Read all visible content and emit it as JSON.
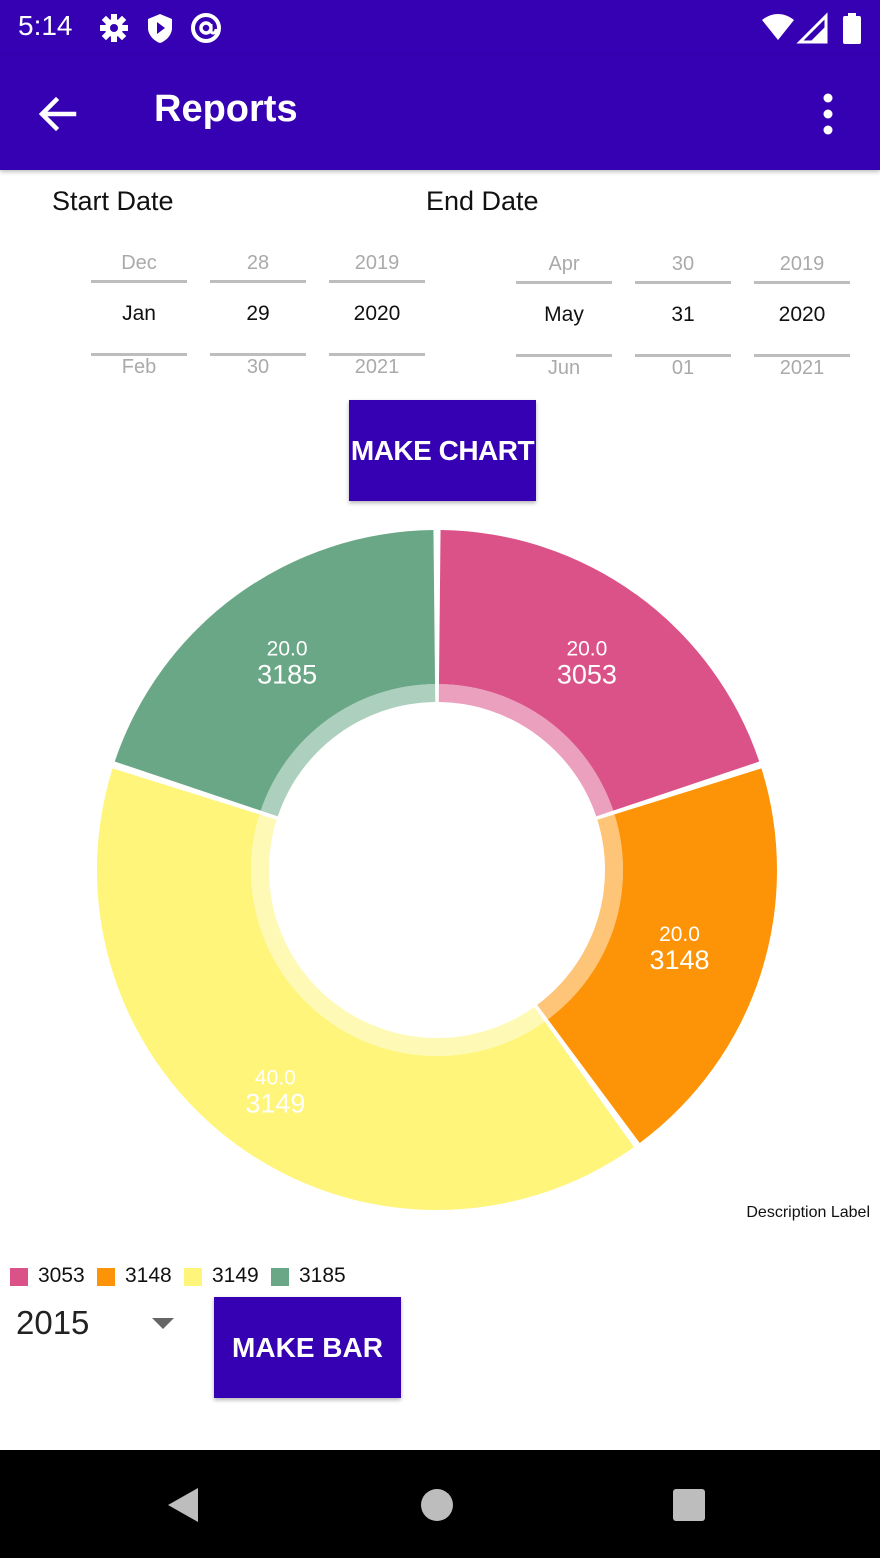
{
  "status_bar": {
    "time": "5:14",
    "icons_left": [
      "settings-icon",
      "shield-play-icon",
      "at-sign-icon"
    ],
    "icons_right": [
      "wifi-icon",
      "signal-icon",
      "battery-icon"
    ]
  },
  "app_bar": {
    "title": "Reports",
    "back_icon": "arrow-back-icon",
    "menu_icon": "more-vert-icon"
  },
  "start_date": {
    "label": "Start Date",
    "month": {
      "prev": "Dec",
      "current": "Jan",
      "next": "Feb"
    },
    "day": {
      "prev": "28",
      "current": "29",
      "next": "30"
    },
    "year": {
      "prev": "2019",
      "current": "2020",
      "next": "2021"
    }
  },
  "end_date": {
    "label": "End Date",
    "month": {
      "prev": "Apr",
      "current": "May",
      "next": "Jun"
    },
    "day": {
      "prev": "30",
      "current": "31",
      "next": "01"
    },
    "year": {
      "prev": "2019",
      "current": "2020",
      "next": "2021"
    }
  },
  "buttons": {
    "make_chart": "MAKE CHART",
    "make_bar": "MAKE BAR"
  },
  "chart_data": {
    "type": "pie",
    "style": "donut",
    "description": "Description Label",
    "slices": [
      {
        "label": "3053",
        "value": 20.0,
        "value_text": "20.0",
        "color": "#db5289"
      },
      {
        "label": "3148",
        "value": 20.0,
        "value_text": "20.0",
        "color": "#fd9408"
      },
      {
        "label": "3149",
        "value": 40.0,
        "value_text": "40.0",
        "color": "#fef57a"
      },
      {
        "label": "3185",
        "value": 20.0,
        "value_text": "20.0",
        "color": "#6aa786"
      }
    ],
    "legend_position": "bottom-left"
  },
  "year_select": {
    "value": "2015"
  },
  "colors": {
    "primary": "#3600b3",
    "nav_bar": "#000000"
  },
  "nav": {
    "icons": [
      "back-triangle-icon",
      "home-circle-icon",
      "recents-square-icon"
    ]
  }
}
